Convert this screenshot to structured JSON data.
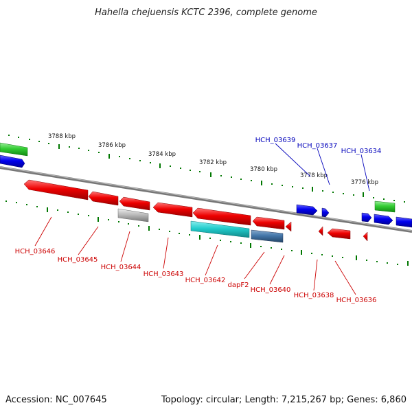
{
  "title": "Hahella chejuensis KCTC 2396, complete genome",
  "footer": {
    "accession": "Accession: NC_007645",
    "topology": "Topology: circular; Length: 7,215,267 bp; Genes: 6,860"
  },
  "scale_labels": [
    "3788 kbp",
    "3786 kbp",
    "3784 kbp",
    "3782 kbp",
    "3780 kbp",
    "3778 kbp",
    "3776 kbp"
  ],
  "gene_labels_reverse": [
    "HCH_03646",
    "HCH_03645",
    "HCH_03644",
    "HCH_03643",
    "HCH_03642",
    "dapF2",
    "HCH_03640",
    "HCH_03638",
    "HCH_03636"
  ],
  "gene_labels_forward": [
    "HCH_03639",
    "HCH_03637",
    "HCH_03634"
  ],
  "colors": {
    "reverse_gene": "#ee0000",
    "forward_gene": "#0000ee",
    "green_gene": "#33cc33",
    "cyan_gene": "#22cccc",
    "steel_gene": "#4477aa",
    "gray_gene": "#bbbbbb",
    "tick": "#007700",
    "backbone": "#888888"
  }
}
